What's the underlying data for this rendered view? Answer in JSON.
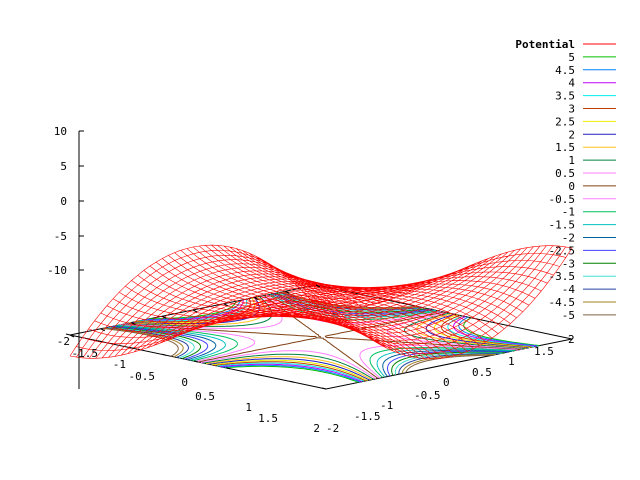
{
  "chart_data": {
    "type": "surface",
    "function": "x^3 - 3*x*y^2",
    "title": "",
    "surface": {
      "name": "Potential",
      "color": "#ff0000",
      "grid_points": 41
    },
    "x_range": [
      -2,
      2
    ],
    "y_range": [
      -2,
      2
    ],
    "z_range": [
      -10,
      10
    ],
    "x_tick_labels": [
      "-2",
      "-1.5",
      "-1",
      "-0.5",
      "0",
      "0.5",
      "1",
      "1.5",
      "2"
    ],
    "y_tick_labels": [
      "-2",
      "-1.5",
      "-1",
      "-0.5",
      "0",
      "0.5",
      "1",
      "1.5",
      "2"
    ],
    "z_tick_labels": [
      "10",
      "5",
      "0",
      "-5",
      "-10"
    ],
    "z_ticks": [
      10,
      5,
      0,
      -5,
      -10
    ],
    "xy_ticks": [
      -2,
      -1.5,
      -1,
      -0.5,
      0,
      0.5,
      1,
      1.5,
      2
    ],
    "legend_position": "top-right",
    "contour_levels": [
      {
        "label": "5",
        "value": 5,
        "color": "#00c000"
      },
      {
        "label": "4.5",
        "value": 4.5,
        "color": "#0080ff"
      },
      {
        "label": "4",
        "value": 4,
        "color": "#c000ff"
      },
      {
        "label": "3.5",
        "value": 3.5,
        "color": "#00eeee"
      },
      {
        "label": "3",
        "value": 3,
        "color": "#c04000"
      },
      {
        "label": "2.5",
        "value": 2.5,
        "color": "#eeee00"
      },
      {
        "label": "2",
        "value": 2,
        "color": "#2020c0"
      },
      {
        "label": "1.5",
        "value": 1.5,
        "color": "#ffc020"
      },
      {
        "label": "1",
        "value": 1,
        "color": "#008040"
      },
      {
        "label": "0.5",
        "value": 0.5,
        "color": "#ff80ff"
      },
      {
        "label": "0",
        "value": 0,
        "color": "#804014"
      },
      {
        "label": "-0.5",
        "value": -0.5,
        "color": "#ff80ff"
      },
      {
        "label": "-1",
        "value": -1,
        "color": "#00c060"
      },
      {
        "label": "-1.5",
        "value": -1.5,
        "color": "#00c0c0"
      },
      {
        "label": "-2",
        "value": -2,
        "color": "#0060a0"
      },
      {
        "label": "-2.5",
        "value": -2.5,
        "color": "#4040ff"
      },
      {
        "label": "-3",
        "value": -3,
        "color": "#008000"
      },
      {
        "label": "-3.5",
        "value": -3.5,
        "color": "#40e0d0"
      },
      {
        "label": "-4",
        "value": -4,
        "color": "#2040a0"
      },
      {
        "label": "-4.5",
        "value": -4.5,
        "color": "#a08020"
      },
      {
        "label": "-5",
        "value": -5,
        "color": "#806040"
      }
    ]
  }
}
